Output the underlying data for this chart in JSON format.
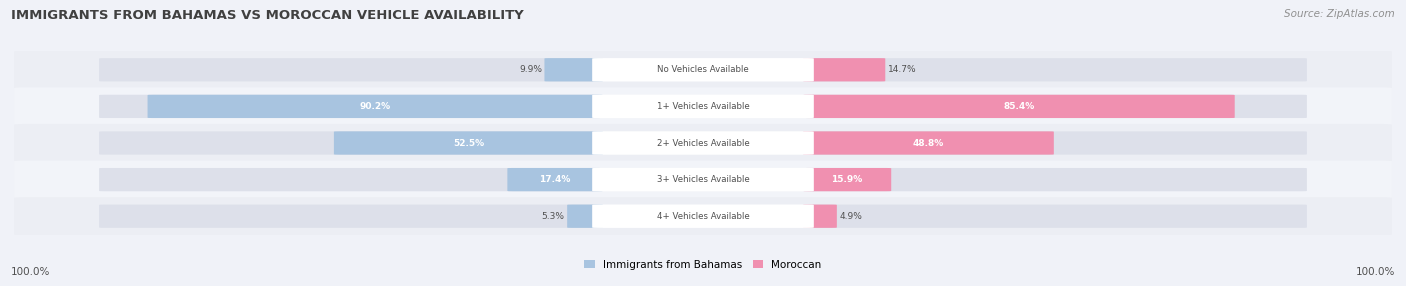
{
  "title": "IMMIGRANTS FROM BAHAMAS VS MOROCCAN VEHICLE AVAILABILITY",
  "source": "Source: ZipAtlas.com",
  "categories": [
    "No Vehicles Available",
    "1+ Vehicles Available",
    "2+ Vehicles Available",
    "3+ Vehicles Available",
    "4+ Vehicles Available"
  ],
  "bahamas_values": [
    9.9,
    90.2,
    52.5,
    17.4,
    5.3
  ],
  "moroccan_values": [
    14.7,
    85.4,
    48.8,
    15.9,
    4.9
  ],
  "bahamas_color": "#a8c4e0",
  "moroccan_color": "#f090b0",
  "bahamas_label": "Immigrants from Bahamas",
  "moroccan_label": "Moroccan",
  "track_color": "#dde0ea",
  "title_color": "#404040",
  "source_color": "#909090",
  "label_color": "#505050",
  "value_inside_color": "#ffffff",
  "value_outside_color": "#505050",
  "bg_even": "#eceef4",
  "bg_odd": "#f2f4f9",
  "axis_label_left": "100.0%",
  "axis_label_right": "100.0%",
  "max_value": 100.0,
  "figsize": [
    14.06,
    2.86
  ],
  "dpi": 100
}
